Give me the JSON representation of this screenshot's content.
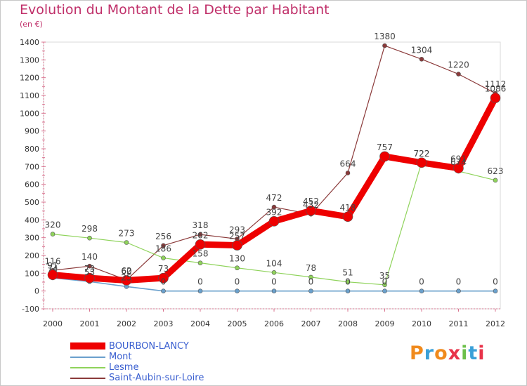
{
  "chart_data": {
    "type": "line",
    "title": "Evolution du Montant de la Dette par Habitant",
    "subtitle": "(en €)",
    "xlabel": "",
    "ylabel": "(en €)",
    "ylim": [
      -100,
      1400
    ],
    "y_ticks": [
      -100,
      0,
      100,
      200,
      300,
      400,
      500,
      600,
      700,
      800,
      900,
      1000,
      1100,
      1200,
      1300,
      1400
    ],
    "x": [
      "2000",
      "2001",
      "2002",
      "2003",
      "2004",
      "2005",
      "2006",
      "2007",
      "2008",
      "2009",
      "2010",
      "2011",
      "2012"
    ],
    "grid": false,
    "legend_position": "bottom-left",
    "series": [
      {
        "name": "Saint-Aubin-sur-Loire",
        "color": "#8b3a3a",
        "values": [
          116,
          140,
          62,
          256,
          318,
          293,
          472,
          432,
          664,
          1380,
          1304,
          1220,
          1112
        ],
        "labels": [
          "116",
          "140",
          "62",
          "256",
          "318",
          "293",
          "472",
          "432",
          "664",
          "1380",
          "1304",
          "1220",
          "1112"
        ]
      },
      {
        "name": "Lesme",
        "color": "#8fd35b",
        "values": [
          320,
          298,
          273,
          186,
          158,
          130,
          104,
          78,
          51,
          35,
          722,
          674,
          623
        ],
        "labels": [
          "320",
          "298",
          "273",
          "186",
          "158",
          "130",
          "104",
          "78",
          "51",
          "35",
          "722",
          "674",
          "623"
        ]
      },
      {
        "name": "Mont",
        "color": "#6aa0cc",
        "values": [
          74,
          53,
          25,
          0,
          0,
          0,
          0,
          0,
          0,
          0,
          0,
          0,
          0
        ],
        "labels": [
          "74",
          "53",
          "25",
          "0",
          "0",
          "0",
          "0",
          "0",
          "0",
          "0",
          "0",
          "0",
          "0"
        ]
      },
      {
        "name": "BOURBON-LANCY",
        "color": "#ee0000",
        "values": [
          91,
          73,
          60,
          73,
          262,
          257,
          392,
          452,
          418,
          757,
          722,
          691,
          1086
        ],
        "labels": [
          "91",
          "73",
          "60",
          "73",
          "262",
          "257",
          "392",
          "452",
          "418",
          "757",
          "722",
          "691",
          "1086"
        ]
      }
    ]
  },
  "legend": {
    "items": [
      {
        "label": "BOURBON-LANCY",
        "color": "#ee0000"
      },
      {
        "label": "Mont",
        "color": "#6aa0cc"
      },
      {
        "label": "Lesme",
        "color": "#8fd35b"
      },
      {
        "label": "Saint-Aubin-sur-Loire",
        "color": "#8b3a3a"
      }
    ]
  },
  "logo": {
    "letters": [
      "P",
      "r",
      "o",
      "x",
      "i",
      "t",
      "i"
    ],
    "colors": [
      "#f08a1c",
      "#3aa0d8",
      "#f08a1c",
      "#e8334a",
      "#6cc04a",
      "#3aa0d8",
      "#e8334a"
    ]
  }
}
